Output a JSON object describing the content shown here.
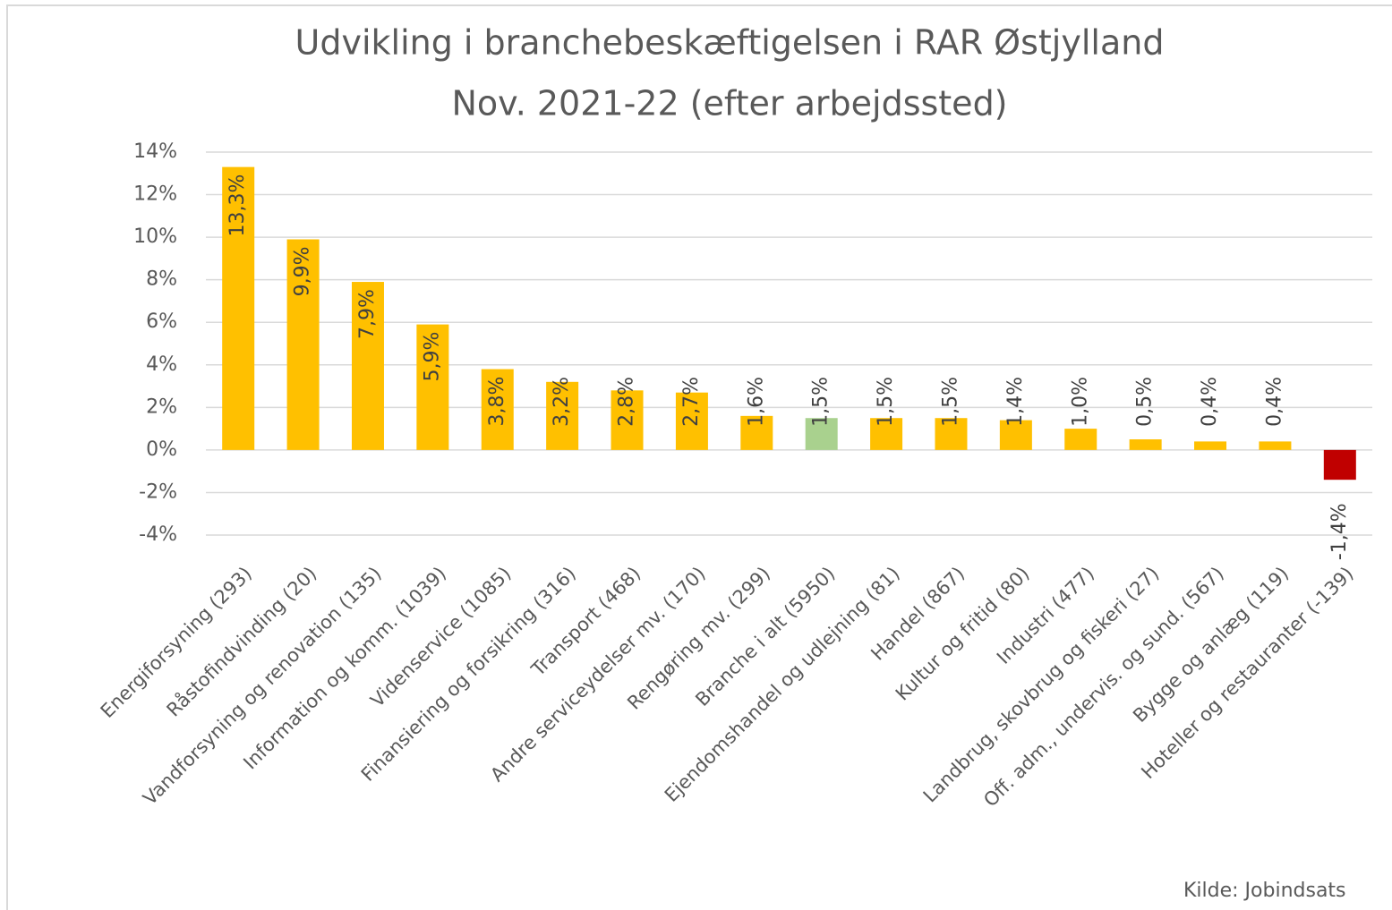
{
  "chart_data": {
    "type": "bar",
    "title": "Udvikling i branchebeskæftigelsen  i RAR Østjylland",
    "subtitle": "Nov. 2021-22 (efter arbejdssted)",
    "annotation": "Kilde: Jobindsats",
    "categories": [
      "Energiforsyning (293)",
      "Råstofindvinding (20)",
      "Vandforsyning og renovation (135)",
      "Information og komm. (1039)",
      "Videnservice (1085)",
      "Finansiering og forsikring (316)",
      "Transport (468)",
      "Andre serviceydelser mv. (170)",
      "Rengøring mv. (299)",
      "Branche i alt (5950)",
      "Ejendomshandel og udlejning (81)",
      "Handel (867)",
      "Kultur og fritid (80)",
      "Industri (477)",
      "Landbrug, skovbrug og fiskeri (27)",
      "Off. adm., undervis. og sund. (567)",
      "Bygge og anlæg (119)",
      "Hoteller og restauranter (-139)"
    ],
    "values": [
      13.3,
      9.9,
      7.9,
      5.9,
      3.8,
      3.2,
      2.8,
      2.7,
      1.6,
      1.5,
      1.5,
      1.5,
      1.4,
      1.0,
      0.5,
      0.4,
      0.4,
      -1.4
    ],
    "value_labels": [
      "13,3%",
      "9,9%",
      "7,9%",
      "5,9%",
      "3,8%",
      "3,2%",
      "2,8%",
      "2,7%",
      "1,6%",
      "1,5%",
      "1,5%",
      "1,5%",
      "1,4%",
      "1,0%",
      "0,5%",
      "0,4%",
      "0,4%",
      "-1,4%"
    ],
    "colors": [
      "#ffc000",
      "#ffc000",
      "#ffc000",
      "#ffc000",
      "#ffc000",
      "#ffc000",
      "#ffc000",
      "#ffc000",
      "#ffc000",
      "#a9d18e",
      "#ffc000",
      "#ffc000",
      "#ffc000",
      "#ffc000",
      "#ffc000",
      "#ffc000",
      "#ffc000",
      "#c00000"
    ],
    "ylim": [
      -4,
      14
    ],
    "yticks": [
      {
        "value": -4,
        "label": "-4%"
      },
      {
        "value": -2,
        "label": "-2%"
      },
      {
        "value": 0,
        "label": "0%"
      },
      {
        "value": 2,
        "label": "2%"
      },
      {
        "value": 4,
        "label": "4%"
      },
      {
        "value": 6,
        "label": "6%"
      },
      {
        "value": 8,
        "label": "8%"
      },
      {
        "value": 10,
        "label": "10%"
      },
      {
        "value": 12,
        "label": "12%"
      },
      {
        "value": 14,
        "label": "14%"
      }
    ],
    "grid": true
  }
}
